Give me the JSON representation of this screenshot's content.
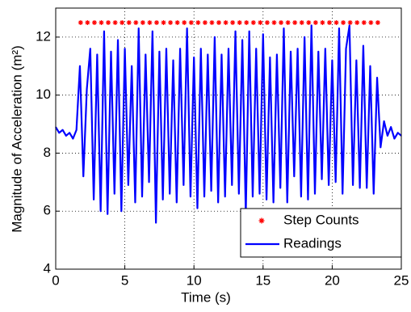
{
  "chart_data": {
    "type": "line",
    "xlabel": "Time (s)",
    "ylabel": "Magnitude of Acceleration (m²)",
    "xlim": [
      0,
      25
    ],
    "xticks": [
      0,
      5,
      10,
      15,
      20,
      25
    ],
    "ylim": [
      4,
      13
    ],
    "yticks": [
      4,
      6,
      8,
      10,
      12
    ],
    "grid": true,
    "legend": "lower right",
    "series": [
      {
        "name": "Step Counts",
        "color": "#ff0000",
        "marker": "*",
        "x": [
          1.8,
          2.3,
          2.8,
          3.3,
          3.8,
          4.3,
          4.8,
          5.3,
          5.8,
          6.3,
          6.8,
          7.3,
          7.8,
          8.3,
          8.8,
          9.3,
          9.8,
          10.3,
          10.8,
          11.3,
          11.8,
          12.3,
          12.8,
          13.3,
          13.8,
          14.3,
          14.8,
          15.3,
          15.8,
          16.3,
          16.8,
          17.3,
          17.8,
          18.3,
          18.8,
          19.3,
          19.8,
          20.3,
          20.8,
          21.3,
          21.8,
          22.3,
          22.8,
          23.3
        ],
        "values": [
          12.5,
          12.5,
          12.5,
          12.5,
          12.5,
          12.5,
          12.5,
          12.5,
          12.5,
          12.5,
          12.5,
          12.5,
          12.5,
          12.5,
          12.5,
          12.5,
          12.5,
          12.5,
          12.5,
          12.5,
          12.5,
          12.5,
          12.5,
          12.5,
          12.5,
          12.5,
          12.5,
          12.5,
          12.5,
          12.5,
          12.5,
          12.5,
          12.5,
          12.5,
          12.5,
          12.5,
          12.5,
          12.5,
          12.5,
          12.5,
          12.5,
          12.5,
          12.5,
          12.5
        ]
      },
      {
        "name": "Readings",
        "color": "#0000ff",
        "marker": "none",
        "x": [
          0,
          0.25,
          0.5,
          0.75,
          1,
          1.25,
          1.5,
          1.75,
          2,
          2.25,
          2.5,
          2.75,
          3,
          3.25,
          3.5,
          3.75,
          4,
          4.25,
          4.5,
          4.75,
          5,
          5.25,
          5.5,
          5.75,
          6,
          6.25,
          6.5,
          6.75,
          7,
          7.25,
          7.5,
          7.75,
          8,
          8.25,
          8.5,
          8.75,
          9,
          9.25,
          9.5,
          9.75,
          10,
          10.25,
          10.5,
          10.75,
          11,
          11.25,
          11.5,
          11.75,
          12,
          12.25,
          12.5,
          12.75,
          13,
          13.25,
          13.5,
          13.75,
          14,
          14.25,
          14.5,
          14.75,
          15,
          15.25,
          15.5,
          15.75,
          16,
          16.25,
          16.5,
          16.75,
          17,
          17.25,
          17.5,
          17.75,
          18,
          18.25,
          18.5,
          18.75,
          19,
          19.25,
          19.5,
          19.75,
          20,
          20.25,
          20.5,
          20.75,
          21,
          21.25,
          21.5,
          21.75,
          22,
          22.25,
          22.5,
          22.75,
          23,
          23.25,
          23.5,
          23.75,
          24,
          24.25,
          24.5,
          24.75,
          25
        ],
        "values": [
          8.9,
          8.7,
          8.8,
          8.6,
          8.7,
          8.5,
          8.8,
          11.0,
          7.2,
          10.2,
          11.6,
          6.4,
          11.4,
          6.0,
          12.2,
          5.9,
          11.5,
          6.6,
          11.9,
          6.0,
          11.6,
          6.9,
          11.0,
          6.3,
          12.3,
          6.5,
          11.4,
          7.0,
          12.2,
          5.6,
          11.5,
          6.4,
          11.6,
          6.6,
          11.2,
          6.3,
          11.6,
          6.9,
          12.3,
          6.5,
          11.3,
          6.1,
          11.6,
          6.5,
          11.4,
          6.7,
          12.0,
          6.3,
          11.4,
          6.5,
          11.6,
          6.9,
          12.2,
          6.6,
          11.9,
          5.9,
          12.2,
          6.5,
          11.6,
          6.6,
          12.1,
          6.4,
          11.3,
          6.3,
          11.4,
          6.8,
          12.3,
          6.3,
          11.5,
          7.2,
          11.6,
          6.5,
          12.0,
          6.4,
          12.4,
          6.6,
          11.5,
          7.1,
          11.6,
          6.9,
          11.2,
          7.0,
          12.3,
          6.6,
          11.6,
          12.4,
          6.9,
          11.2,
          6.8,
          11.7,
          6.8,
          11.0,
          6.6,
          10.6,
          8.2,
          9.1,
          8.6,
          8.9,
          8.5,
          8.7,
          8.6
        ]
      }
    ]
  }
}
